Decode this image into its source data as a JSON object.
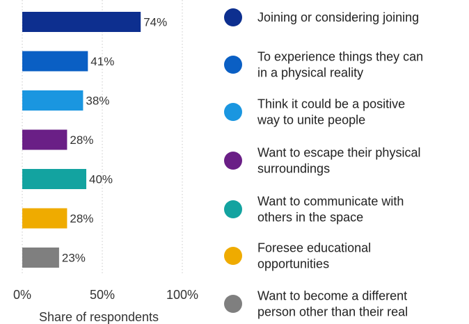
{
  "chart_data": {
    "type": "bar",
    "orientation": "horizontal",
    "categories": [
      "Joining or considering joining",
      "To experience things they can in a physical reality",
      "Think it could be a positive way to unite people",
      "Want to escape their physical surroundings",
      "Want to communicate with others in the space",
      "Foresee educational opportunities",
      "Want to become a different person other than their real"
    ],
    "legend_lines": [
      [
        "Joining or considering joining"
      ],
      [
        "To experience things they can",
        "in a physical reality"
      ],
      [
        "Think it could be a positive",
        "way to unite people"
      ],
      [
        "Want to escape their physical",
        "surroundings"
      ],
      [
        "Want to communicate with",
        "others in the space"
      ],
      [
        "Foresee educational",
        "opportunities"
      ],
      [
        "Want to become a different",
        "person other than their real"
      ]
    ],
    "values": [
      74,
      41,
      38,
      28,
      40,
      28,
      23
    ],
    "value_labels": [
      "74%",
      "41%",
      "38%",
      "28%",
      "40%",
      "28%",
      "23%"
    ],
    "colors": [
      "#0d2f8f",
      "#0a5fc4",
      "#1a96e0",
      "#6a1f86",
      "#13a3a0",
      "#efab00",
      "#7f7f7f"
    ],
    "xlim": [
      0,
      100
    ],
    "xticks": [
      0,
      50,
      100
    ],
    "xtick_labels": [
      "0%",
      "50%",
      "100%"
    ],
    "xlabel": "Share of respondents",
    "grid": "vertical dotted",
    "legend_position": "right"
  }
}
